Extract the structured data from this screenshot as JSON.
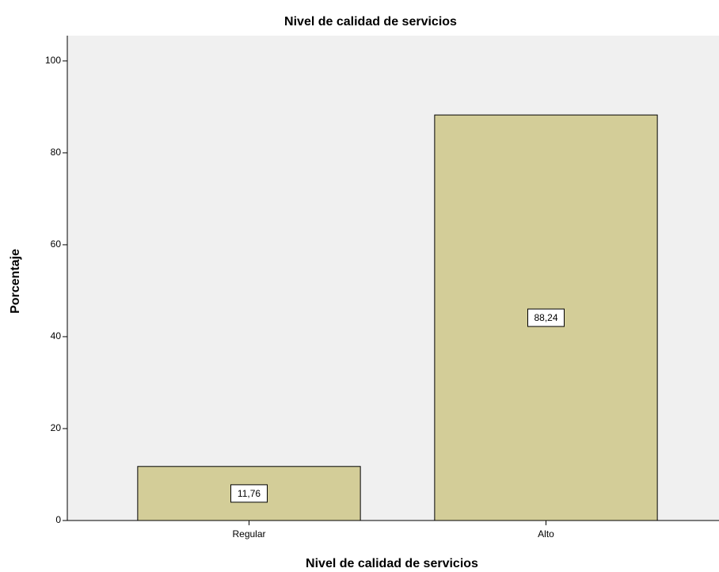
{
  "chart_data": {
    "type": "bar",
    "title": "Nivel de calidad de servicios",
    "x_label": "Nivel de calidad de servicios",
    "y_label": "Porcentaje",
    "categories": [
      "Regular",
      "Alto"
    ],
    "values": [
      11.76,
      88.24
    ],
    "value_labels": [
      "11,76",
      "88,24"
    ],
    "color": "#d3cd98",
    "ylim": [
      0,
      105.5
    ],
    "yticks": [
      0,
      20,
      40,
      60,
      80,
      100
    ],
    "grid": false
  }
}
